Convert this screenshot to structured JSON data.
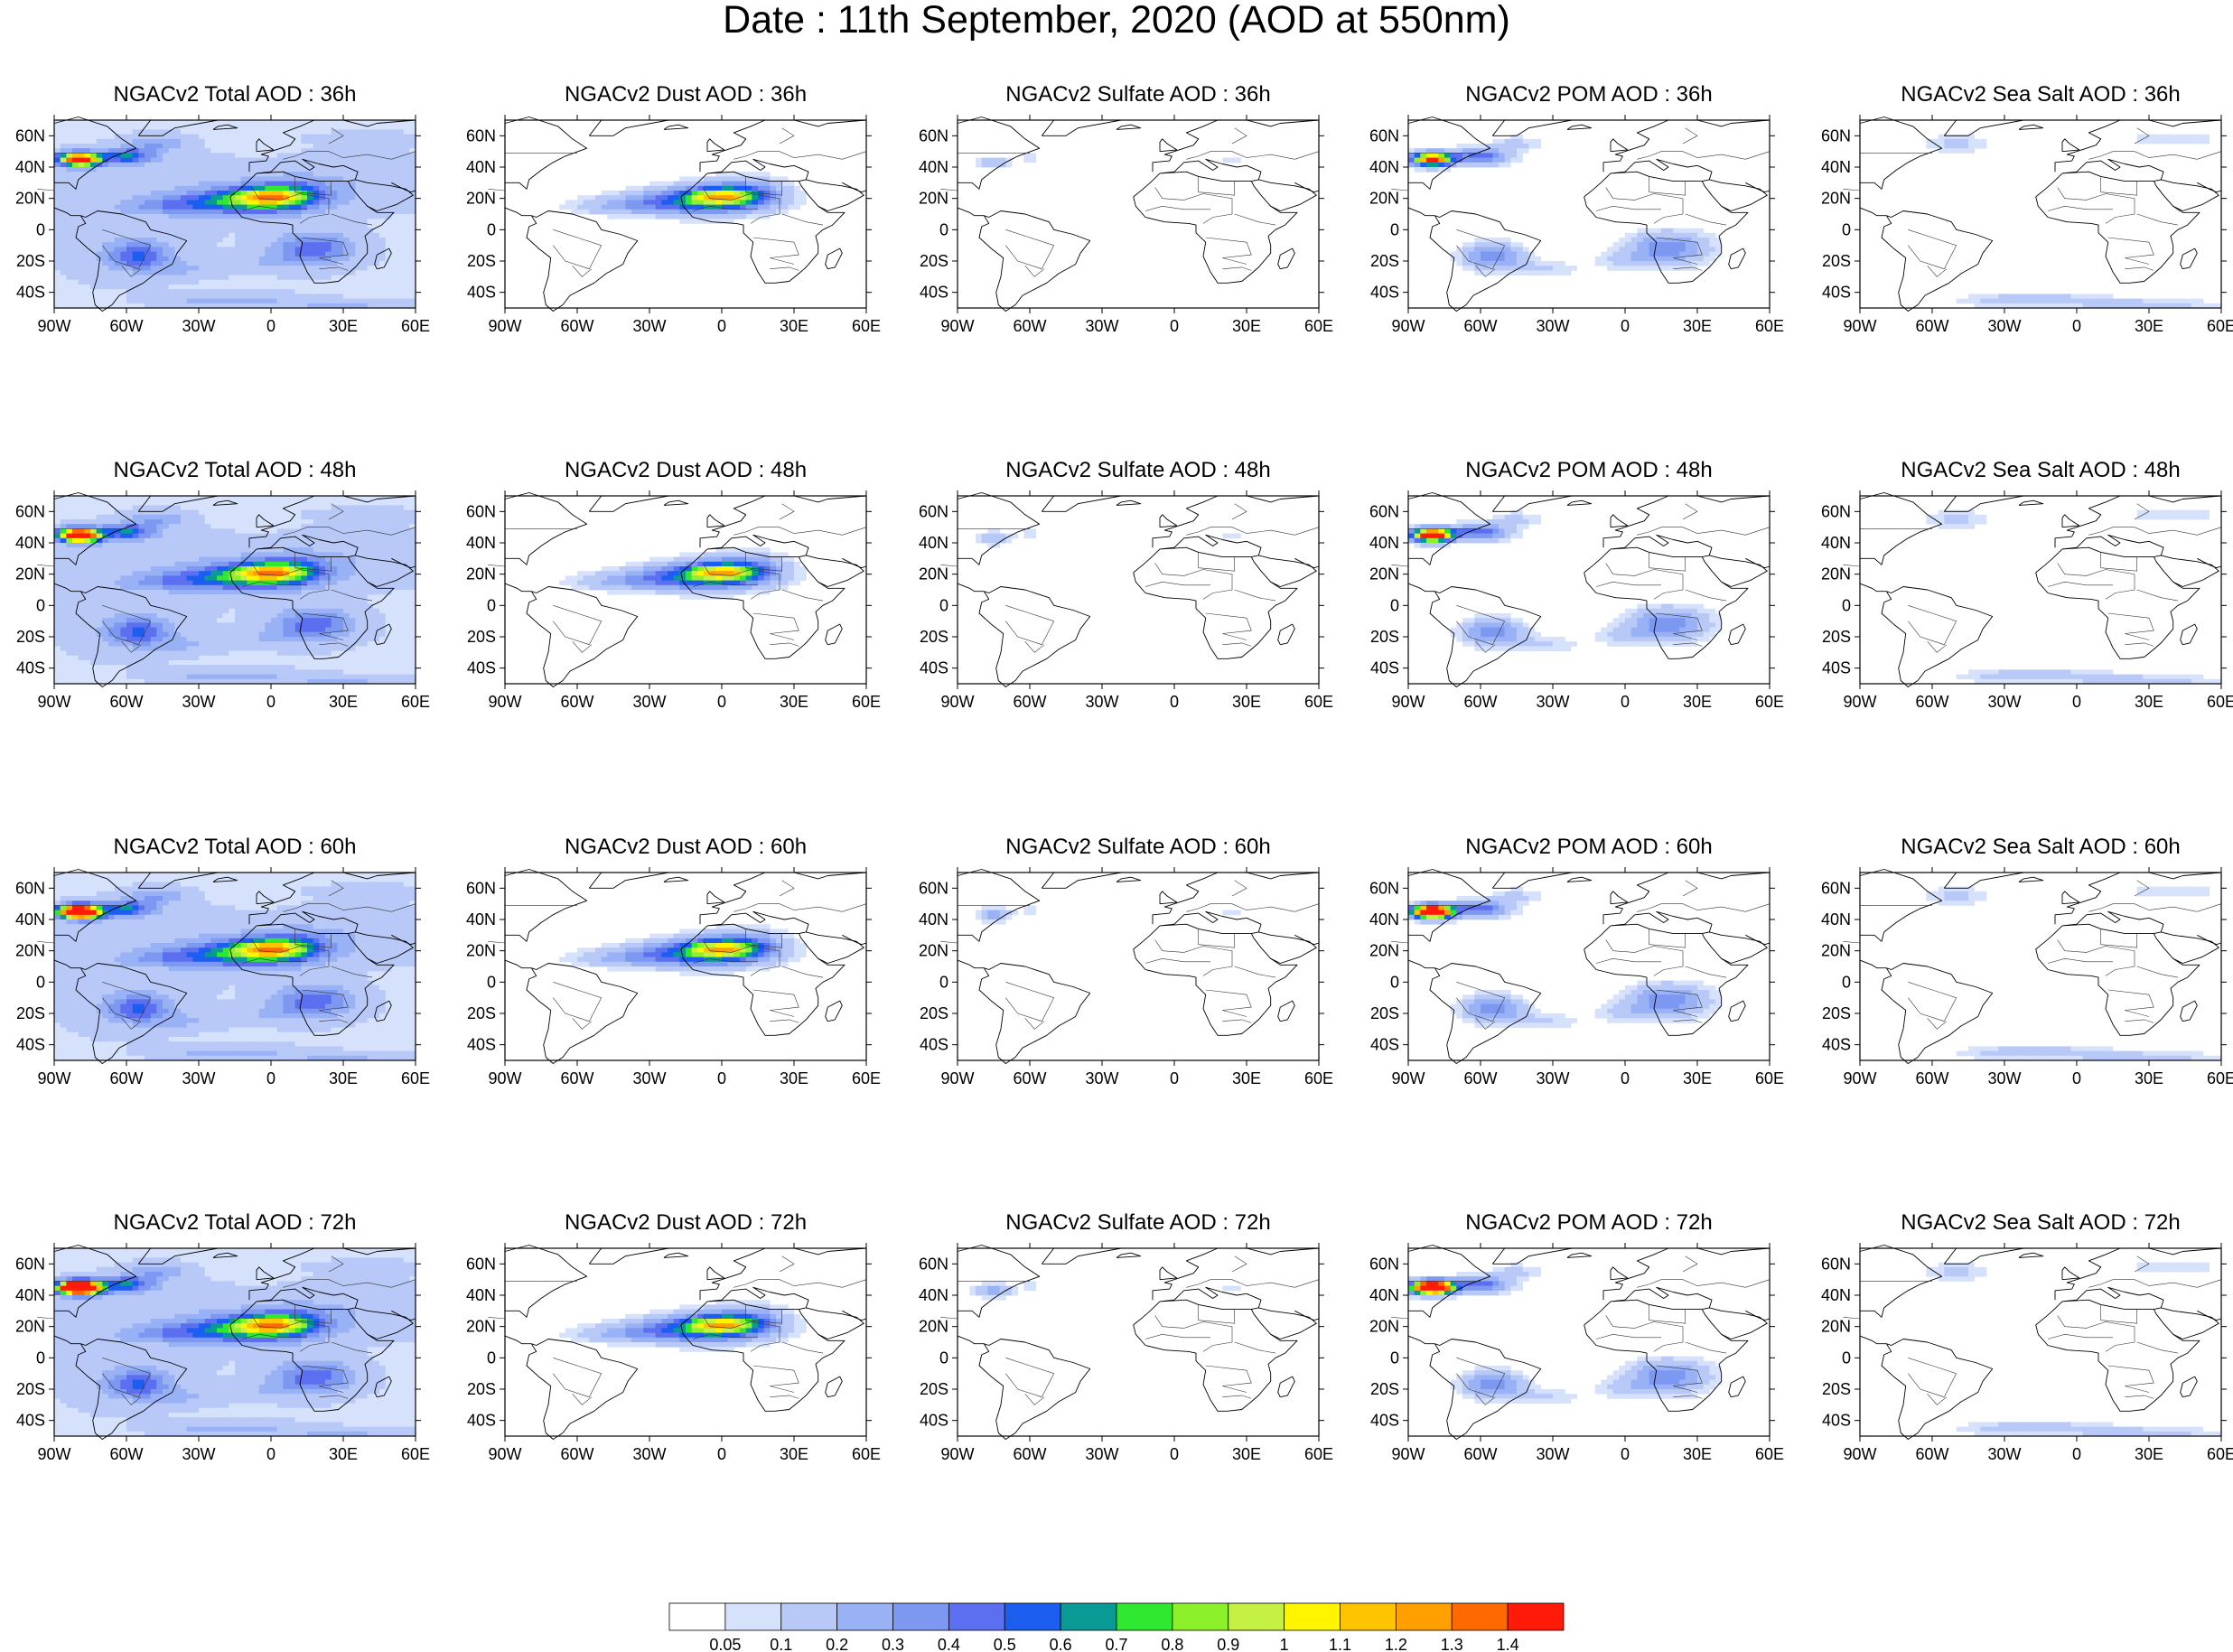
{
  "title": "Date : 11th September, 2020 (AOD at 550nm)",
  "map": {
    "projection": "cylindrical equidistant",
    "lon_ticks": [
      "90W",
      "60W",
      "30W",
      "0",
      "30E",
      "60E"
    ],
    "lat_ticks": [
      "60N",
      "40N",
      "20N",
      "0",
      "20S",
      "40S"
    ],
    "lon_range": [
      -90,
      60
    ],
    "lat_range": [
      -50,
      70
    ]
  },
  "rows": [
    {
      "panels": [
        {
          "title": "NGACv2 Total AOD : 36h",
          "field": "total",
          "hour": 36
        },
        {
          "title": "NGACv2 Dust AOD : 36h",
          "field": "dust",
          "hour": 36
        },
        {
          "title": "NGACv2 Sulfate AOD : 36h",
          "field": "sulfate",
          "hour": 36
        },
        {
          "title": "NGACv2 POM AOD : 36h",
          "field": "pom",
          "hour": 36
        },
        {
          "title": "NGACv2 Sea Salt AOD : 36h",
          "field": "seasalt",
          "hour": 36
        }
      ]
    },
    {
      "panels": [
        {
          "title": "NGACv2 Total AOD : 48h",
          "field": "total",
          "hour": 48
        },
        {
          "title": "NGACv2 Dust AOD : 48h",
          "field": "dust",
          "hour": 48
        },
        {
          "title": "NGACv2 Sulfate AOD : 48h",
          "field": "sulfate",
          "hour": 48
        },
        {
          "title": "NGACv2 POM AOD : 48h",
          "field": "pom",
          "hour": 48
        },
        {
          "title": "NGACv2 Sea Salt AOD : 48h",
          "field": "seasalt",
          "hour": 48
        }
      ]
    },
    {
      "panels": [
        {
          "title": "NGACv2 Total AOD : 60h",
          "field": "total",
          "hour": 60
        },
        {
          "title": "NGACv2 Dust AOD : 60h",
          "field": "dust",
          "hour": 60
        },
        {
          "title": "NGACv2 Sulfate AOD : 60h",
          "field": "sulfate",
          "hour": 60
        },
        {
          "title": "NGACv2 POM AOD : 60h",
          "field": "pom",
          "hour": 60
        },
        {
          "title": "NGACv2 Sea Salt AOD : 60h",
          "field": "seasalt",
          "hour": 60
        }
      ]
    },
    {
      "panels": [
        {
          "title": "NGACv2 Total AOD : 72h",
          "field": "total",
          "hour": 72
        },
        {
          "title": "NGACv2 Dust AOD : 72h",
          "field": "dust",
          "hour": 72
        },
        {
          "title": "NGACv2 Sulfate AOD : 72h",
          "field": "sulfate",
          "hour": 72
        },
        {
          "title": "NGACv2 POM AOD : 72h",
          "field": "pom",
          "hour": 72
        },
        {
          "title": "NGACv2 Sea Salt  AOD : 72h",
          "field": "seasalt",
          "hour": 72
        }
      ]
    }
  ],
  "colorbar": {
    "labels": [
      "0.05",
      "0.1",
      "0.2",
      "0.3",
      "0.4",
      "0.5",
      "0.6",
      "0.7",
      "0.8",
      "0.9",
      "1",
      "1.1",
      "1.2",
      "1.3",
      "1.4"
    ],
    "colors": [
      "#ffffff",
      "#d6e1fb",
      "#b8c9f8",
      "#99b1f5",
      "#7d98f1",
      "#5b6ff0",
      "#1b5ef0",
      "#0a9a96",
      "#2fe82f",
      "#8cf02a",
      "#c5f044",
      "#fff500",
      "#ffc400",
      "#ff9f00",
      "#ff6a00",
      "#ff1a0a"
    ]
  }
}
